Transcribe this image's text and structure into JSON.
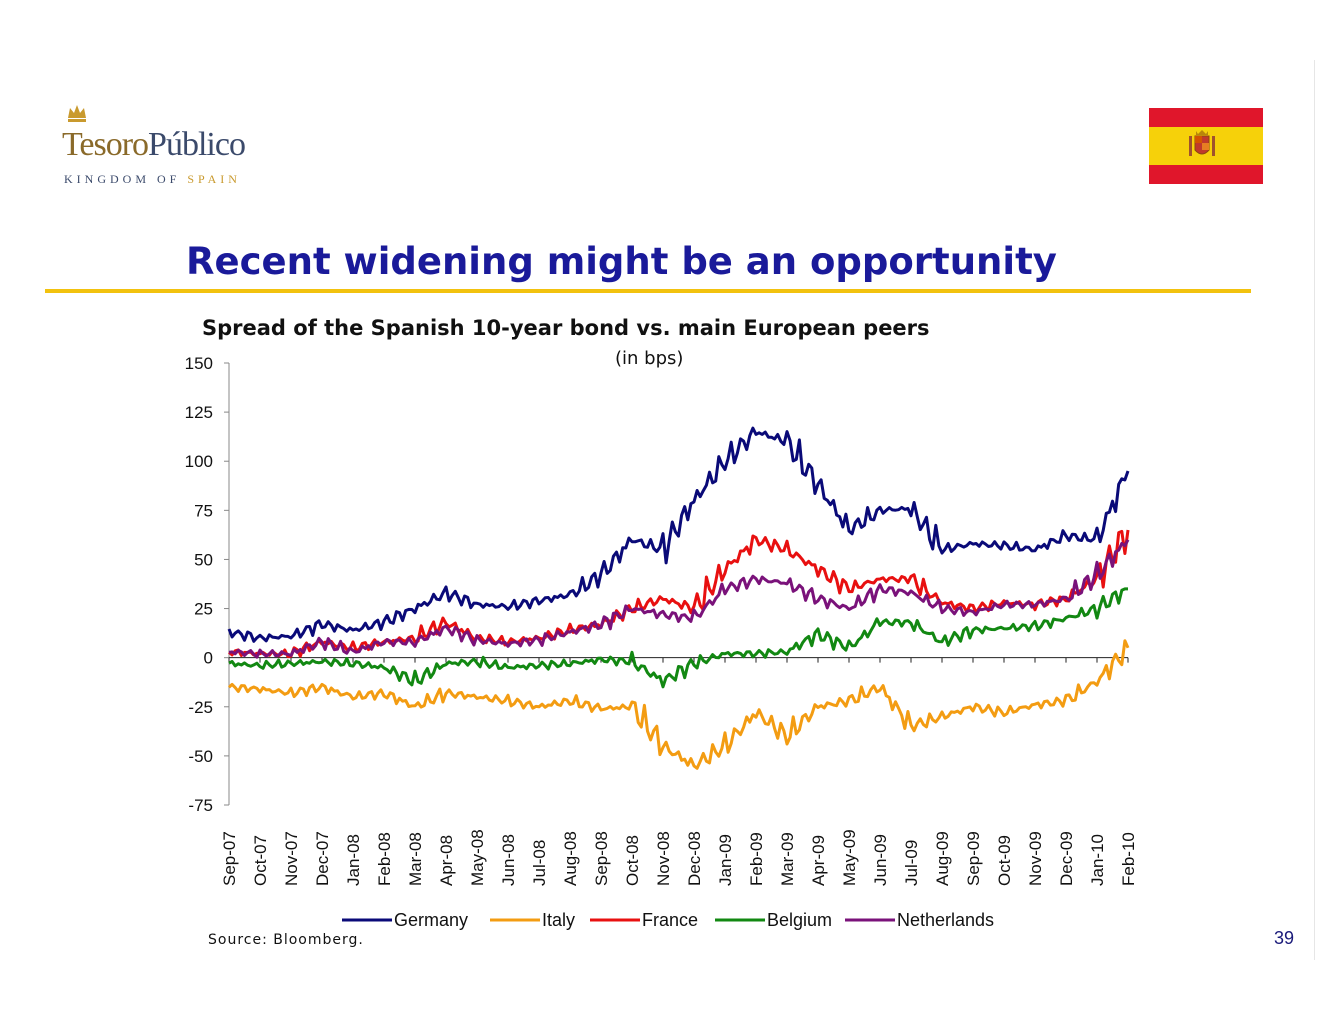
{
  "logo": {
    "wordmark_part1": "Tesoro",
    "wordmark_part2": "Público",
    "tagline_part1": "KINGDOM OF ",
    "tagline_part2": "SPAIN",
    "crown_icon": "crown-icon"
  },
  "flag": {
    "country": "Spain",
    "colors": {
      "red": "#e0162b",
      "yellow": "#f6d10a"
    }
  },
  "slide": {
    "title": "Recent widening might be an opportunity",
    "source": "Source: Bloomberg.",
    "page_number": "39"
  },
  "colors": {
    "title": "#1a1a9a",
    "rule": "#f2c20e"
  },
  "chart_data": {
    "type": "line",
    "title": "Spread of the Spanish 10-year bond vs. main European peers",
    "subtitle": "(in bps)",
    "xlabel": "",
    "ylabel": "",
    "ylim": [
      -75,
      150
    ],
    "yticks": [
      150,
      125,
      100,
      75,
      50,
      25,
      0,
      -25,
      -50,
      -75
    ],
    "grid": false,
    "legend": "bottom",
    "categories": [
      "Sep-07",
      "Oct-07",
      "Nov-07",
      "Dec-07",
      "Jan-08",
      "Feb-08",
      "Mar-08",
      "Apr-08",
      "May-08",
      "Jun-08",
      "Jul-08",
      "Aug-08",
      "Sep-08",
      "Oct-08",
      "Nov-08",
      "Dec-08",
      "Jan-09",
      "Feb-09",
      "Mar-09",
      "Apr-09",
      "May-09",
      "Jun-09",
      "Jul-09",
      "Aug-09",
      "Sep-09",
      "Oct-09",
      "Nov-09",
      "Dec-09",
      "Jan-10",
      "Feb-10"
    ],
    "series": [
      {
        "name": "Germany",
        "color": "#0a0a78",
        "values": [
          13,
          10,
          11,
          17,
          14,
          18,
          25,
          33,
          27,
          26,
          29,
          32,
          42,
          60,
          55,
          80,
          100,
          115,
          110,
          88,
          65,
          75,
          76,
          55,
          58,
          57,
          55,
          62,
          60,
          95
        ]
      },
      {
        "name": "Italy",
        "color": "#f39c12",
        "values": [
          -15,
          -16,
          -18,
          -15,
          -20,
          -18,
          -25,
          -18,
          -20,
          -22,
          -25,
          -22,
          -26,
          -25,
          -45,
          -55,
          -45,
          -28,
          -40,
          -25,
          -22,
          -15,
          -35,
          -30,
          -25,
          -28,
          -24,
          -22,
          -12,
          5
        ]
      },
      {
        "name": "France",
        "color": "#e81010",
        "values": [
          3,
          2,
          2,
          8,
          5,
          8,
          10,
          18,
          10,
          8,
          10,
          14,
          17,
          25,
          30,
          25,
          45,
          60,
          55,
          45,
          35,
          40,
          40,
          28,
          25,
          28,
          27,
          30,
          40,
          65
        ]
      },
      {
        "name": "Belgium",
        "color": "#128812",
        "values": [
          -3,
          -4,
          -3,
          -2,
          -3,
          -5,
          -12,
          -3,
          -2,
          -5,
          -4,
          -3,
          -1,
          -2,
          -12,
          -3,
          2,
          2,
          3,
          12,
          5,
          18,
          18,
          8,
          14,
          15,
          16,
          20,
          25,
          35
        ]
      },
      {
        "name": "Netherlands",
        "color": "#7a127a",
        "values": [
          3,
          2,
          2,
          8,
          3,
          8,
          8,
          15,
          9,
          7,
          9,
          13,
          17,
          25,
          22,
          20,
          35,
          40,
          38,
          30,
          25,
          35,
          33,
          25,
          23,
          27,
          27,
          30,
          42,
          60
        ]
      }
    ]
  }
}
